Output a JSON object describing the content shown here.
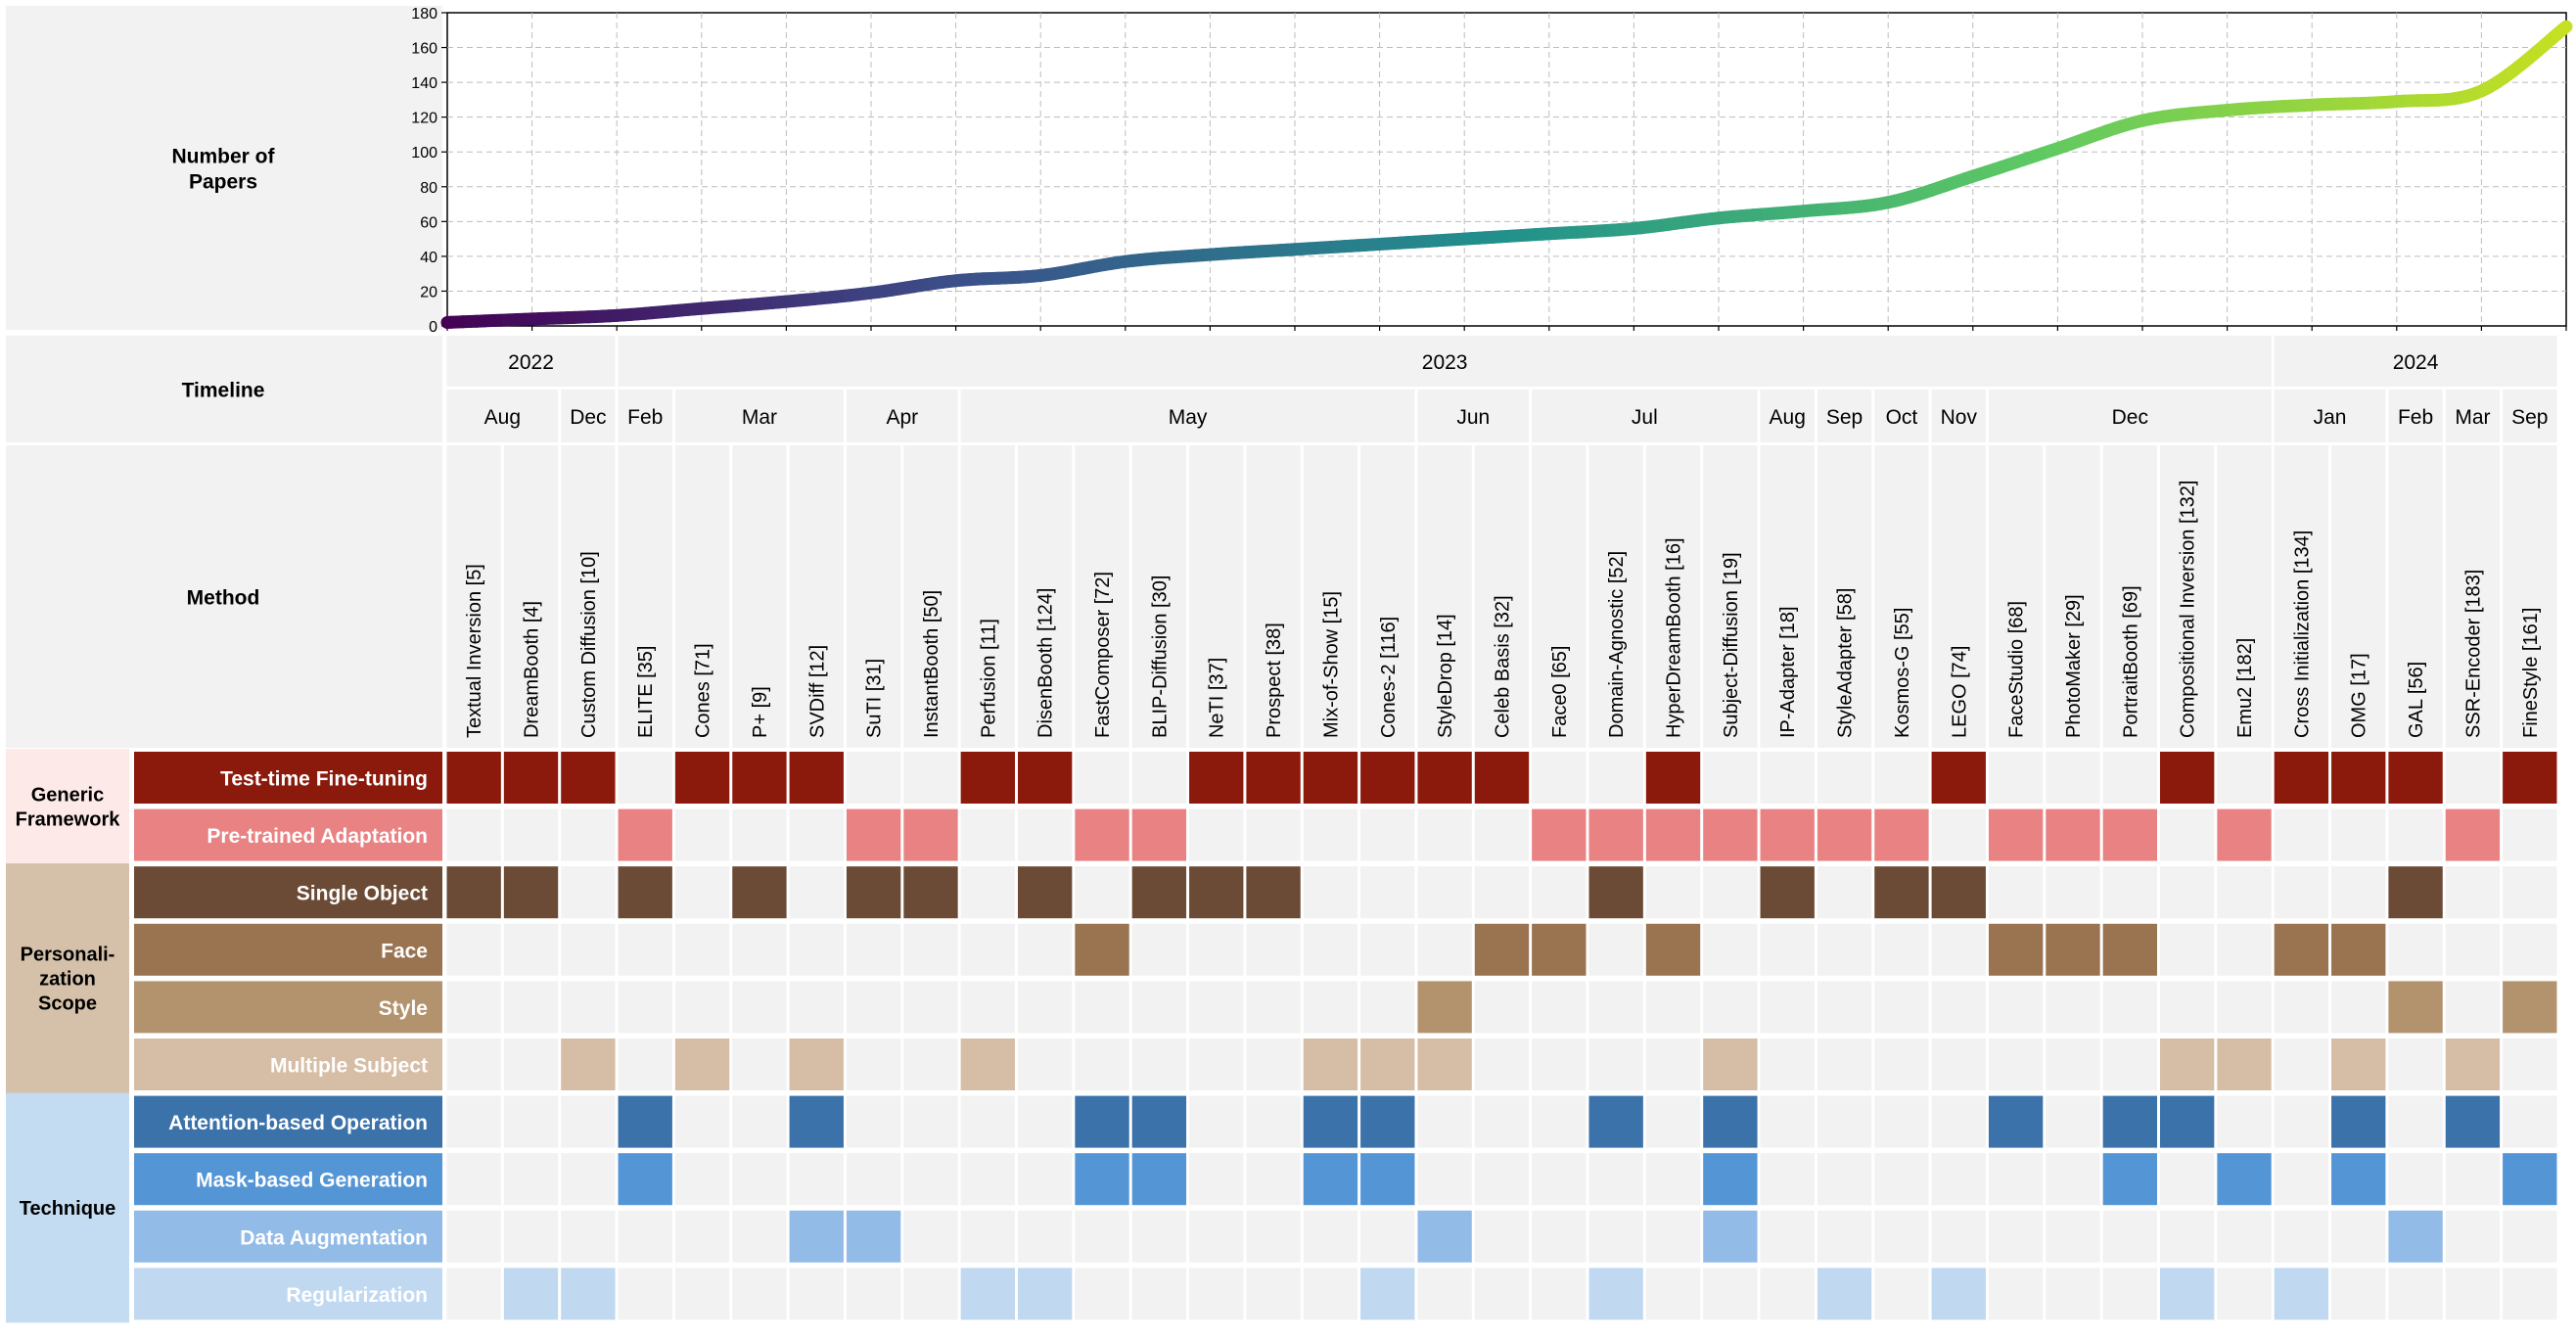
{
  "chart_data": {
    "type": "line",
    "ylabel": "Number of\nPapers",
    "ylim": [
      0,
      180
    ],
    "yticks": [
      0,
      20,
      40,
      60,
      80,
      100,
      120,
      140,
      160,
      180
    ],
    "grid": true,
    "colormap": [
      "#440154",
      "#3b528b",
      "#21918c",
      "#5ec962",
      "#c8e020"
    ],
    "x": [
      "2022-08",
      "2022-09",
      "2022-10",
      "2022-11",
      "2022-12",
      "2023-01",
      "2023-02",
      "2023-03",
      "2023-04",
      "2023-05",
      "2023-06",
      "2023-07",
      "2023-08",
      "2023-09",
      "2023-10",
      "2023-11",
      "2023-12",
      "2024-01",
      "2024-02",
      "2024-03",
      "2024-04",
      "2024-05",
      "2024-06",
      "2024-07",
      "2024-08",
      "2024-09"
    ],
    "y": [
      2,
      4,
      6,
      10,
      14,
      19,
      26,
      29,
      37,
      41,
      44,
      47,
      50,
      53,
      56,
      62,
      66,
      71,
      86,
      102,
      118,
      124,
      127,
      129,
      135,
      172
    ]
  },
  "left_labels": {
    "plot": "Number of\nPapers",
    "timeline": "Timeline",
    "method": "Method"
  },
  "years": [
    "2022",
    "2023",
    "2024"
  ],
  "months": [
    "Aug",
    "Dec",
    "Feb",
    "Mar",
    "Apr",
    "May",
    "Jun",
    "Jul",
    "Aug",
    "Sep",
    "Oct",
    "Nov",
    "Dec",
    "Jan",
    "Feb",
    "Mar",
    "Sep"
  ],
  "methods": [
    "Textual Inversion [5]",
    "DreamBooth [4]",
    "Custom Diffusion [10]",
    "ELITE [35]",
    "Cones [71]",
    "P+ [9]",
    "SVDiff [12]",
    "SuTI [31]",
    "InstantBooth [50]",
    "Perfusion [11]",
    "DisenBooth [124]",
    "FastComposer [72]",
    "BLIP-Diffusion [30]",
    "NeTI [37]",
    "Prospect [38]",
    "Mix-of-Show [15]",
    "Cones-2 [116]",
    "StyleDrop [14]",
    "Celeb Basis [32]",
    "Face0 [65]",
    "Domain-Agnostic [52]",
    "HyperDreamBooth [16]",
    "Subject-Diffusion [19]",
    "IP-Adapter [18]",
    "StyleAdapter [58]",
    "Kosmos-G [55]",
    "LEGO [74]",
    "FaceStudio [68]",
    "PhotoMaker [29]",
    "PortraitBooth [69]",
    "Compositional Inversion [132]",
    "Emu2 [182]",
    "Cross Initialization [134]",
    "OMG [17]",
    "GAL [56]",
    "SSR-Encoder [183]",
    "FineStyle [161]"
  ],
  "groups": [
    {
      "label": "Generic\nFramework",
      "bg": "#fde9e8"
    },
    {
      "label": "Personali-\nzation\nScope",
      "bg": "#d5c1aa"
    },
    {
      "label": "Technique",
      "bg": "#c3dcf1"
    }
  ],
  "rows": [
    {
      "label": "Test-time Fine-tuning",
      "color": "#8b1a0d",
      "cells": [
        1,
        1,
        1,
        0,
        1,
        1,
        1,
        0,
        0,
        1,
        1,
        0,
        0,
        1,
        1,
        1,
        1,
        1,
        1,
        0,
        0,
        1,
        0,
        0,
        0,
        0,
        1,
        0,
        0,
        0,
        1,
        0,
        1,
        1,
        1,
        0,
        1
      ]
    },
    {
      "label": "Pre-trained Adaptation",
      "color": "#e98283",
      "cells": [
        0,
        0,
        0,
        1,
        0,
        0,
        0,
        1,
        1,
        0,
        0,
        1,
        1,
        0,
        0,
        0,
        0,
        0,
        0,
        1,
        1,
        1,
        1,
        1,
        1,
        1,
        0,
        1,
        1,
        1,
        0,
        1,
        0,
        0,
        0,
        1,
        0
      ]
    },
    {
      "label": "Single Object",
      "color": "#6b4b35",
      "cells": [
        1,
        1,
        0,
        1,
        0,
        1,
        0,
        1,
        1,
        0,
        1,
        0,
        1,
        1,
        1,
        0,
        0,
        0,
        0,
        0,
        1,
        0,
        0,
        1,
        0,
        1,
        1,
        0,
        0,
        0,
        0,
        0,
        0,
        0,
        1,
        0,
        0
      ]
    },
    {
      "label": "Face",
      "color": "#9a7350",
      "cells": [
        0,
        0,
        0,
        0,
        0,
        0,
        0,
        0,
        0,
        0,
        0,
        1,
        0,
        0,
        0,
        0,
        0,
        0,
        1,
        1,
        0,
        1,
        0,
        0,
        0,
        0,
        0,
        1,
        1,
        1,
        0,
        0,
        1,
        1,
        0,
        0,
        0
      ]
    },
    {
      "label": "Style",
      "color": "#b3936e",
      "cells": [
        0,
        0,
        0,
        0,
        0,
        0,
        0,
        0,
        0,
        0,
        0,
        0,
        0,
        0,
        0,
        0,
        0,
        1,
        0,
        0,
        0,
        0,
        0,
        0,
        0,
        0,
        0,
        0,
        0,
        0,
        0,
        0,
        0,
        0,
        1,
        0,
        1
      ]
    },
    {
      "label": "Multiple Subject",
      "color": "#d6bda5",
      "cells": [
        0,
        0,
        1,
        0,
        1,
        0,
        1,
        0,
        0,
        1,
        0,
        0,
        0,
        0,
        0,
        1,
        1,
        1,
        0,
        0,
        0,
        0,
        1,
        0,
        0,
        0,
        0,
        0,
        0,
        0,
        1,
        1,
        0,
        1,
        0,
        1,
        0
      ]
    },
    {
      "label": "Attention-based Operation",
      "color": "#3a72a9",
      "cells": [
        0,
        0,
        0,
        1,
        0,
        0,
        1,
        0,
        0,
        0,
        0,
        1,
        1,
        0,
        0,
        1,
        1,
        0,
        0,
        0,
        1,
        0,
        1,
        0,
        0,
        0,
        0,
        1,
        0,
        1,
        1,
        0,
        0,
        1,
        0,
        1,
        0
      ]
    },
    {
      "label": "Mask-based Generation",
      "color": "#5495d6",
      "cells": [
        0,
        0,
        0,
        1,
        0,
        0,
        0,
        0,
        0,
        0,
        0,
        1,
        1,
        0,
        0,
        1,
        1,
        0,
        0,
        0,
        0,
        0,
        1,
        0,
        0,
        0,
        0,
        0,
        0,
        1,
        0,
        1,
        0,
        1,
        0,
        0,
        1
      ]
    },
    {
      "label": "Data Augmentation",
      "color": "#93bbe7",
      "cells": [
        0,
        0,
        0,
        0,
        0,
        0,
        1,
        1,
        0,
        0,
        0,
        0,
        0,
        0,
        0,
        0,
        0,
        1,
        0,
        0,
        0,
        0,
        1,
        0,
        0,
        0,
        0,
        0,
        0,
        0,
        0,
        0,
        0,
        0,
        1,
        0,
        0
      ]
    },
    {
      "label": "Regularization",
      "color": "#c0d9f1",
      "cells": [
        0,
        1,
        1,
        0,
        0,
        0,
        0,
        0,
        0,
        1,
        1,
        0,
        0,
        0,
        0,
        0,
        1,
        0,
        0,
        0,
        1,
        0,
        0,
        0,
        1,
        0,
        1,
        0,
        0,
        0,
        1,
        0,
        1,
        0,
        0,
        0,
        0
      ]
    }
  ],
  "colors": {
    "cell_empty": "#f2f2f2",
    "label_bg": "#f2f2f2",
    "grid_line": "#bdbdbd"
  }
}
